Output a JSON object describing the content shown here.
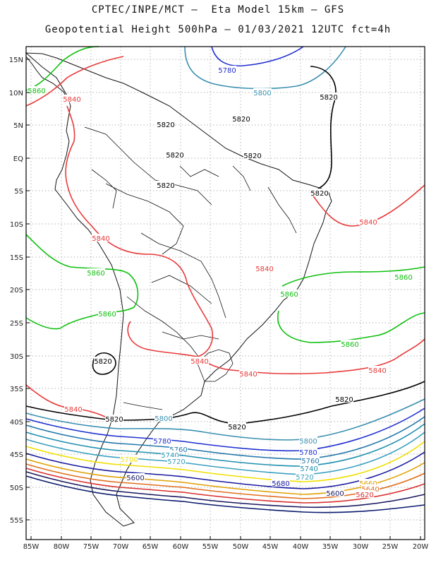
{
  "title_line1": "CPTEC/INPE/MCT –  Eta Model 15km – GFS",
  "title_line2": "Geopotential Height 500hPa – 01/03/2021 12UTC fct=4h",
  "lat_ticks": [
    "15N",
    "10N",
    "5N",
    "EQ",
    "5S",
    "10S",
    "15S",
    "20S",
    "25S",
    "30S",
    "35S",
    "40S",
    "45S",
    "50S",
    "55S"
  ],
  "lon_ticks": [
    "85W",
    "80W",
    "75W",
    "70W",
    "65W",
    "60W",
    "55W",
    "50W",
    "45W",
    "40W",
    "35W",
    "30W",
    "25W",
    "20W"
  ],
  "grid": true,
  "contour_colors": {
    "5560": "#0a1a6e",
    "5600": "#1a1a60",
    "5620": "#d93030",
    "5640": "#e07020",
    "5660": "#e0a000",
    "5680": "#1818a0",
    "5700": "#f0e000",
    "5720": "#3aa0c0",
    "5740": "#2090b0",
    "5760": "#2277aa",
    "5780": "#2030d0",
    "5800": "#3a8fb0",
    "5820": "#000000",
    "5840": "#e83a3a",
    "5860": "#10c010"
  },
  "contour_labels": [
    {
      "text": "5780",
      "color": "5780"
    },
    {
      "text": "5800",
      "color": "5800"
    },
    {
      "text": "5860",
      "color": "5860"
    },
    {
      "text": "5840",
      "color": "5840"
    },
    {
      "text": "5820",
      "color": "5820"
    },
    {
      "text": "5820",
      "color": "5820"
    },
    {
      "text": "5820",
      "color": "5820"
    },
    {
      "text": "5820",
      "color": "5820"
    },
    {
      "text": "5820",
      "color": "5820"
    },
    {
      "text": "5820",
      "color": "5820"
    },
    {
      "text": "5820",
      "color": "5820"
    },
    {
      "text": "5840",
      "color": "5840"
    },
    {
      "text": "5840",
      "color": "5840"
    },
    {
      "text": "5840",
      "color": "5840"
    },
    {
      "text": "5860",
      "color": "5860"
    },
    {
      "text": "5860",
      "color": "5860"
    },
    {
      "text": "5860",
      "color": "5860"
    },
    {
      "text": "5860",
      "color": "5860"
    },
    {
      "text": "5860",
      "color": "5860"
    },
    {
      "text": "5820",
      "color": "5820"
    },
    {
      "text": "5840",
      "color": "5840"
    },
    {
      "text": "5840",
      "color": "5840"
    },
    {
      "text": "5840",
      "color": "5840"
    },
    {
      "text": "5840",
      "color": "5840"
    },
    {
      "text": "5820",
      "color": "5820"
    },
    {
      "text": "5820",
      "color": "5820"
    },
    {
      "text": "5820",
      "color": "5820"
    },
    {
      "text": "5800",
      "color": "5800"
    },
    {
      "text": "5800",
      "color": "5800"
    },
    {
      "text": "5780",
      "color": "5780"
    },
    {
      "text": "5780",
      "color": "5780"
    },
    {
      "text": "5760",
      "color": "5760"
    },
    {
      "text": "5760",
      "color": "5760"
    },
    {
      "text": "5740",
      "color": "5740"
    },
    {
      "text": "5740",
      "color": "5740"
    },
    {
      "text": "5720",
      "color": "5720"
    },
    {
      "text": "5720",
      "color": "5720"
    },
    {
      "text": "5700",
      "color": "5700"
    },
    {
      "text": "5680",
      "color": "5680"
    },
    {
      "text": "5660",
      "color": "5660"
    },
    {
      "text": "5640",
      "color": "5640"
    },
    {
      "text": "5620",
      "color": "5620"
    },
    {
      "text": "5600",
      "color": "5600"
    },
    {
      "text": "5600",
      "color": "5600"
    }
  ]
}
